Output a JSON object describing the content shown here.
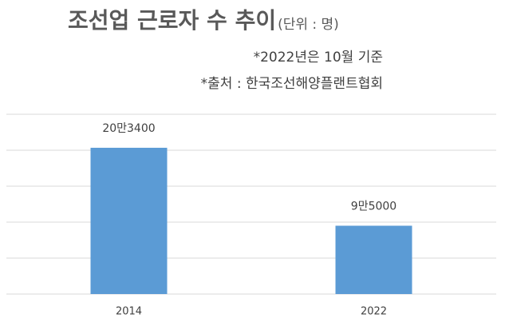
{
  "chart_data": {
    "type": "bar",
    "title": "조선업 근로자 수 추이",
    "title_unit": "(단위 : 명)",
    "annotations": [
      "*2022년은 10월 기준",
      "*출처 : 한국조선해양플랜트협회"
    ],
    "categories": [
      "2014",
      "2022"
    ],
    "values": [
      203400,
      95000
    ],
    "value_labels": [
      "20만3400",
      "9만5000"
    ],
    "color": "#5b9bd5",
    "ylim": [
      0,
      250000
    ],
    "yticks": [
      0,
      50000,
      100000,
      150000,
      200000,
      250000
    ],
    "grid": true
  }
}
